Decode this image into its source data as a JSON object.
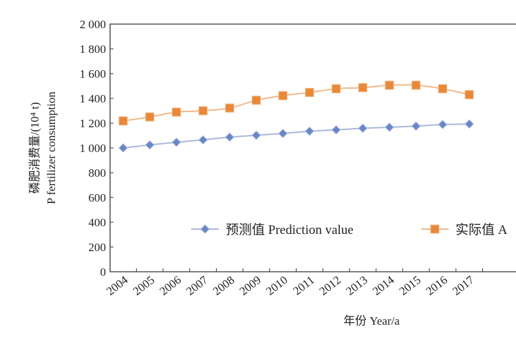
{
  "chart_data": {
    "type": "line",
    "title": "",
    "xlabel": "年份 Year/a",
    "ylabel": [
      "磷肥消费量/(10⁴ t)",
      "P fertilizer consumption"
    ],
    "ylim": [
      0,
      2000
    ],
    "yticks": [
      "0",
      "200",
      "400",
      "600",
      "800",
      "1 000",
      "1 200",
      "1 400",
      "1 600",
      "1 800",
      "2 000"
    ],
    "ytick_values": [
      0,
      200,
      400,
      600,
      800,
      1000,
      1200,
      1400,
      1600,
      1800,
      2000
    ],
    "categories": [
      "2004",
      "2005",
      "2006",
      "2007",
      "2008",
      "2009",
      "2010",
      "2011",
      "2012",
      "2013",
      "2014",
      "2015",
      "2016",
      "2017"
    ],
    "grid": false,
    "legend_placement": "center",
    "series": [
      {
        "name": "预测值 Prediction value",
        "color": "#6b86c4",
        "marker": "diamond",
        "values": [
          1000,
          1024,
          1046,
          1065,
          1087,
          1102,
          1117,
          1135,
          1146,
          1159,
          1167,
          1176,
          1189,
          1193
        ]
      },
      {
        "name": "实际值 A",
        "color": "#e8883a",
        "marker": "square",
        "values": [
          1218,
          1250,
          1289,
          1300,
          1322,
          1385,
          1422,
          1448,
          1478,
          1487,
          1506,
          1506,
          1478,
          1430
        ]
      }
    ]
  }
}
